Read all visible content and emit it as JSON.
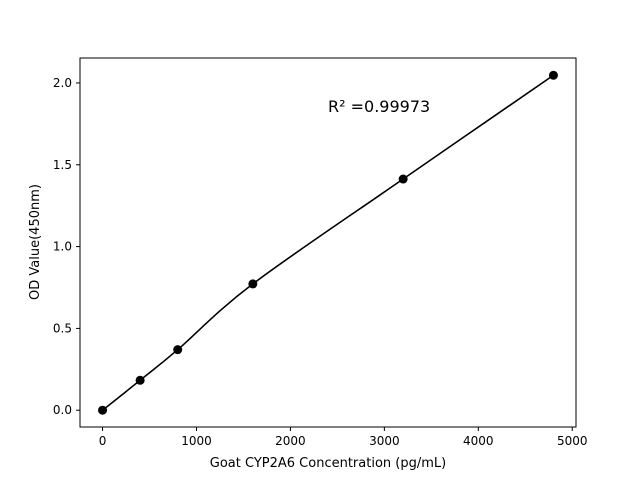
{
  "chart_data": {
    "type": "scatter",
    "title": "",
    "xlabel": "Goat CYP2A6 Concentration (pg/mL)",
    "ylabel": "OD Value(450nm)",
    "xlim": [
      -240,
      5040
    ],
    "ylim": [
      -0.1025,
      2.1525
    ],
    "xticks": [
      0,
      1000,
      2000,
      3000,
      4000,
      5000
    ],
    "xtick_labels": [
      "0",
      "1000",
      "2000",
      "3000",
      "4000",
      "5000"
    ],
    "yticks": [
      0.0,
      0.5,
      1.0,
      1.5,
      2.0
    ],
    "ytick_labels": [
      "0.0",
      "0.5",
      "1.0",
      "1.5",
      "2.0"
    ],
    "grid": false,
    "series": [
      {
        "x": [
          0,
          400,
          800,
          1600,
          3200,
          4800
        ],
        "y": [
          0.0,
          0.183,
          0.37,
          0.772,
          1.413,
          2.047
        ],
        "marker": "circle",
        "color": "#000000",
        "fit_line": true
      }
    ],
    "annotations": [
      {
        "text": "R² =0.99973",
        "x": 2400,
        "y": 1.86
      }
    ]
  }
}
